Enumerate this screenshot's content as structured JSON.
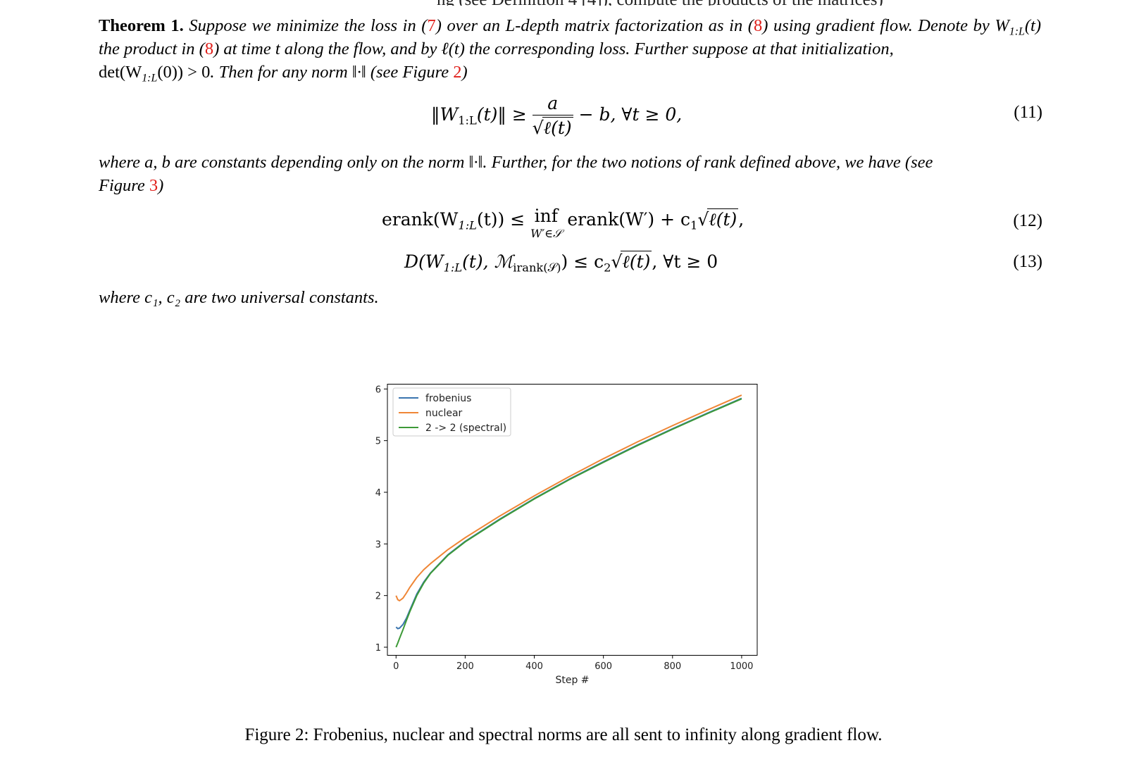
{
  "paper": {
    "clipped_top_line": "ng (see Definition 4 [4]), compute the products of the matrices)",
    "theorem": {
      "label": "Theorem 1.",
      "t1": "Suppose we minimize the loss in (",
      "ref1": "7",
      "t2": ") over an L-depth matrix factorization as in (",
      "ref2": "8",
      "t3": ") using gradient flow. Denote by",
      "t4": "the product in (",
      "ref3": "8",
      "t5": ") at time t along the flow, and by ℓ(t) the corresponding loss. Further suppose at that initialization,",
      "t6": ". Then for any norm ‖·‖ (see Figure ",
      "ref4": "2",
      "t7": ")"
    },
    "det_condition": "det(W",
    "det_tail": "(0)) > 0",
    "W": "W",
    "sub_1L": "1:L",
    "of_t": "(t)",
    "eq11": {
      "lhs": "‖W",
      "lhs_tail": "(t)‖ ≥",
      "num": "a",
      "den": "ℓ(t)",
      "rhs": "− b,   ∀t ≥ 0,",
      "number": "(11)"
    },
    "para2": {
      "t1": "where a, b are constants depending only on the norm ‖·‖. Further, for the two notions of rank defined above, we have (see",
      "t2": "Figure ",
      "ref": "3",
      "t3": ")"
    },
    "eq12": {
      "lhs": "erank(W",
      "lhs_tail": "(t)) ≤",
      "inf": "inf",
      "inf_sub": "W′∈𝒮",
      "rhs": "erank(W′) + c",
      "c_sub": "1",
      "sqrt": "ℓ(t)",
      "tail": ",",
      "number": "(12)"
    },
    "eq13": {
      "lhs": "D(W",
      "lhs_tail": "(t), ℳ",
      "m_sub": "irank(𝒮)",
      "mid": ") ≤ c",
      "c_sub": "2",
      "sqrt": "ℓ(t)",
      "tail": ",   ∀t ≥ 0",
      "number": "(13)"
    },
    "para3": "where c₁, c₂ are two universal constants.",
    "caption": "Figure 2: Frobenius, nuclear and spectral norms are all sent to infinity along gradient flow."
  },
  "chart_data": {
    "type": "line",
    "title": "",
    "xlabel": "Step #",
    "ylabel": "",
    "xlim": [
      -25,
      1045
    ],
    "ylim": [
      0.85,
      6.1
    ],
    "xticks": [
      0,
      200,
      400,
      600,
      800,
      1000
    ],
    "yticks": [
      1,
      2,
      3,
      4,
      5,
      6
    ],
    "legend_position": "top-left",
    "grid": false,
    "series": [
      {
        "name": "frobenius",
        "color": "#3a75af",
        "x": [
          0,
          5,
          10,
          20,
          30,
          40,
          60,
          80,
          100,
          150,
          200,
          300,
          400,
          500,
          600,
          700,
          800,
          900,
          1000
        ],
        "y": [
          1.39,
          1.36,
          1.37,
          1.44,
          1.56,
          1.72,
          2.03,
          2.26,
          2.44,
          2.79,
          3.05,
          3.48,
          3.88,
          4.25,
          4.59,
          4.92,
          5.23,
          5.53,
          5.82
        ]
      },
      {
        "name": "nuclear",
        "color": "#ef8636",
        "x": [
          0,
          5,
          10,
          20,
          30,
          40,
          60,
          80,
          100,
          150,
          200,
          300,
          400,
          500,
          600,
          700,
          800,
          900,
          1000
        ],
        "y": [
          2.0,
          1.92,
          1.9,
          1.95,
          2.05,
          2.16,
          2.35,
          2.5,
          2.62,
          2.89,
          3.12,
          3.54,
          3.93,
          4.3,
          4.65,
          4.98,
          5.29,
          5.59,
          5.88
        ]
      },
      {
        "name": "2 -> 2 (spectral)",
        "color": "#3d9a38",
        "x": [
          0,
          5,
          10,
          20,
          30,
          40,
          60,
          80,
          100,
          150,
          200,
          300,
          400,
          500,
          600,
          700,
          800,
          900,
          1000
        ],
        "y": [
          1.0,
          1.08,
          1.17,
          1.34,
          1.52,
          1.69,
          2.0,
          2.24,
          2.43,
          2.78,
          3.04,
          3.47,
          3.87,
          4.24,
          4.58,
          4.91,
          5.22,
          5.52,
          5.81
        ]
      }
    ]
  }
}
